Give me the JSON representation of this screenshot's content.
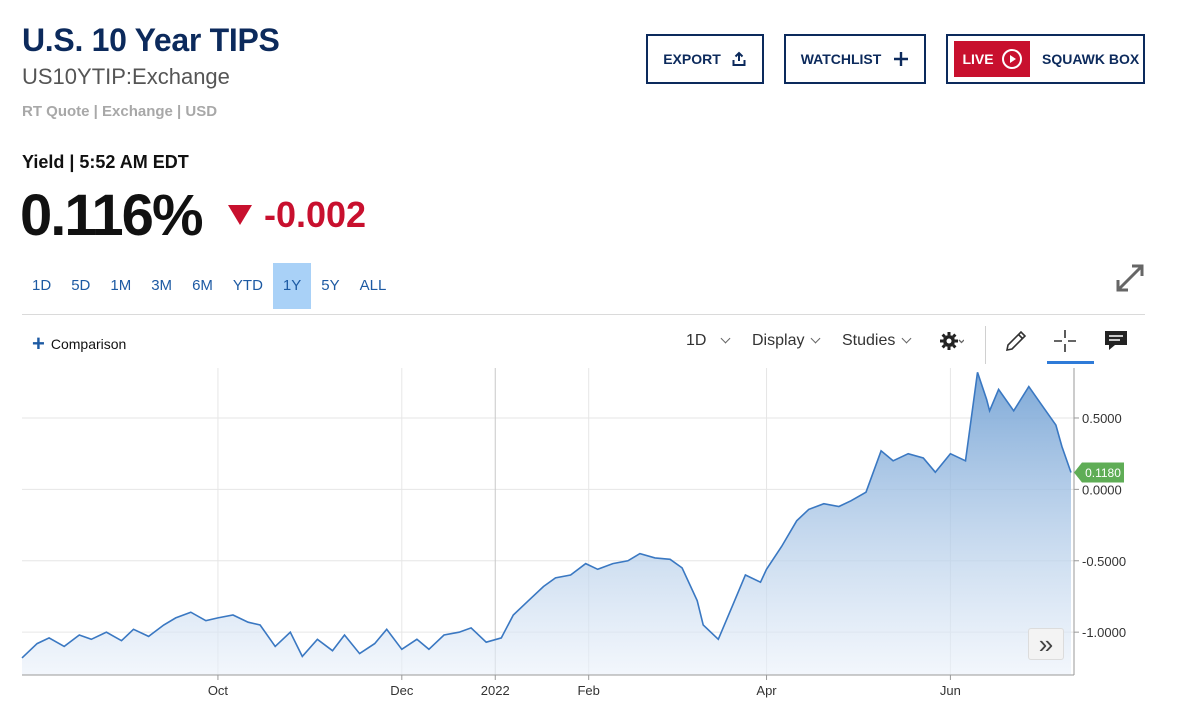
{
  "header": {
    "title": "U.S. 10 Year TIPS",
    "symbol": "US10YTIP:Exchange",
    "quote_meta": "RT Quote | Exchange | USD"
  },
  "actions": {
    "export": "EXPORT",
    "watchlist": "WATCHLIST",
    "live": "LIVE",
    "squawk": "SQUAWK BOX"
  },
  "quote": {
    "label": "Yield | 5:52 AM EDT",
    "value": "0.116%",
    "change": "-0.002",
    "direction_color": "#c8102e"
  },
  "ranges": [
    "1D",
    "5D",
    "1M",
    "3M",
    "6M",
    "YTD",
    "1Y",
    "5Y",
    "ALL"
  ],
  "active_range": "1Y",
  "toolbar": {
    "comparison": "Comparison",
    "interval": "1D",
    "display": "Display",
    "studies": "Studies",
    "icons": [
      "gear-icon",
      "pencil-icon",
      "crosshair-icon",
      "comment-icon"
    ]
  },
  "colors": {
    "brand": "#0c2a5c",
    "accent": "#1d5aa3",
    "line": "#3a78c2",
    "last_badge": "#5fad56"
  },
  "chart_data": {
    "type": "area",
    "title": "",
    "xlabel": "",
    "ylabel": "",
    "ylim": [
      -1.3,
      0.85
    ],
    "y_ticks": [
      0.5,
      0.0,
      -0.5,
      -1.0
    ],
    "y_tick_labels": [
      "0.5000",
      "0.0000",
      "-0.5000",
      "-1.0000"
    ],
    "x_ticks": [
      "2021-10-01",
      "2021-12-01",
      "2022-01-01",
      "2022-02-01",
      "2022-04-01",
      "2022-06-01"
    ],
    "x_tick_labels": [
      "Oct",
      "Dec",
      "2022",
      "Feb",
      "Apr",
      "Jun"
    ],
    "xlim": [
      "2021-07-28",
      "2022-07-12"
    ],
    "last_value_label": "0.1180",
    "grid": true,
    "series": [
      {
        "dates": [
          "2021-07-28",
          "2021-08-02",
          "2021-08-06",
          "2021-08-11",
          "2021-08-16",
          "2021-08-20",
          "2021-08-25",
          "2021-08-30",
          "2021-09-03",
          "2021-09-08",
          "2021-09-13",
          "2021-09-17",
          "2021-09-22",
          "2021-09-27",
          "2021-10-01",
          "2021-10-06",
          "2021-10-11",
          "2021-10-15",
          "2021-10-20",
          "2021-10-25",
          "2021-10-29",
          "2021-11-03",
          "2021-11-08",
          "2021-11-12",
          "2021-11-17",
          "2021-11-22",
          "2021-11-26",
          "2021-12-01",
          "2021-12-06",
          "2021-12-10",
          "2021-12-15",
          "2021-12-20",
          "2021-12-24",
          "2021-12-29",
          "2022-01-03",
          "2022-01-07",
          "2022-01-12",
          "2022-01-17",
          "2022-01-21",
          "2022-01-26",
          "2022-01-31",
          "2022-02-04",
          "2022-02-09",
          "2022-02-14",
          "2022-02-18",
          "2022-02-23",
          "2022-02-28",
          "2022-03-04",
          "2022-03-09",
          "2022-03-11",
          "2022-03-16",
          "2022-03-21",
          "2022-03-25",
          "2022-03-30",
          "2022-04-01",
          "2022-04-06",
          "2022-04-11",
          "2022-04-15",
          "2022-04-20",
          "2022-04-25",
          "2022-04-29",
          "2022-05-04",
          "2022-05-09",
          "2022-05-13",
          "2022-05-18",
          "2022-05-23",
          "2022-05-27",
          "2022-06-01",
          "2022-06-06",
          "2022-06-10",
          "2022-06-13",
          "2022-06-14",
          "2022-06-17",
          "2022-06-22",
          "2022-06-27",
          "2022-07-01",
          "2022-07-06",
          "2022-07-08",
          "2022-07-11"
        ],
        "values": [
          -1.18,
          -1.08,
          -1.04,
          -1.1,
          -1.02,
          -1.05,
          -1.0,
          -1.06,
          -0.98,
          -1.03,
          -0.95,
          -0.9,
          -0.86,
          -0.92,
          -0.9,
          -0.88,
          -0.93,
          -0.95,
          -1.1,
          -1.0,
          -1.17,
          -1.05,
          -1.13,
          -1.02,
          -1.15,
          -1.08,
          -0.98,
          -1.12,
          -1.05,
          -1.12,
          -1.02,
          -1.0,
          -0.97,
          -1.07,
          -1.04,
          -0.88,
          -0.78,
          -0.68,
          -0.62,
          -0.6,
          -0.52,
          -0.56,
          -0.52,
          -0.5,
          -0.45,
          -0.48,
          -0.49,
          -0.55,
          -0.78,
          -0.95,
          -1.05,
          -0.8,
          -0.6,
          -0.65,
          -0.56,
          -0.4,
          -0.22,
          -0.14,
          -0.1,
          -0.12,
          -0.08,
          -0.02,
          0.27,
          0.2,
          0.25,
          0.22,
          0.12,
          0.25,
          0.2,
          0.82,
          0.63,
          0.55,
          0.7,
          0.55,
          0.72,
          0.6,
          0.45,
          0.3,
          0.118
        ]
      }
    ]
  }
}
